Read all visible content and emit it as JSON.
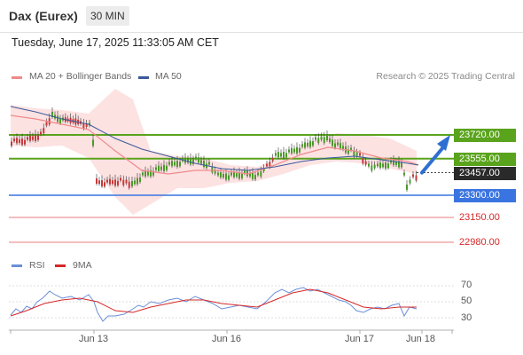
{
  "header": {
    "title": "Dax (Eurex)",
    "timeframe": "30 MIN"
  },
  "datetime": "Tuesday, June 17, 2025 11:33:05 AM CET",
  "legend": {
    "ma20_label": "MA 20 + Bollinger Bands",
    "ma50_label": "MA 50",
    "credit": "Research © 2025 Trading Central",
    "rsi_label": "RSI",
    "rsi_ma_label": "9MA"
  },
  "colors": {
    "ma20": "#f08a8a",
    "ma50": "#3a5a9a",
    "bands": "#fde2e2",
    "resistance": "#5aa31c",
    "support": "#3a74e0",
    "secondary_support": "#e05050",
    "current": "#2a2a2a",
    "rsi": "#6a8fd8",
    "rsi_ma": "#d62828"
  },
  "price_levels": [
    {
      "value": "23720.00",
      "kind": "resistance"
    },
    {
      "value": "23555.00",
      "kind": "resistance"
    },
    {
      "value": "23457.00",
      "kind": "current"
    },
    {
      "value": "23300.00",
      "kind": "support"
    },
    {
      "value": "23150.00",
      "kind": "secondary"
    },
    {
      "value": "22980.00",
      "kind": "secondary"
    }
  ],
  "x_labels": [
    "Jun 13",
    "Jun 16",
    "Jun 17",
    "Jun 18"
  ],
  "rsi_levels": [
    "70",
    "50",
    "30"
  ],
  "forecast_arrow": {
    "from": 23457,
    "to": 23720
  }
}
